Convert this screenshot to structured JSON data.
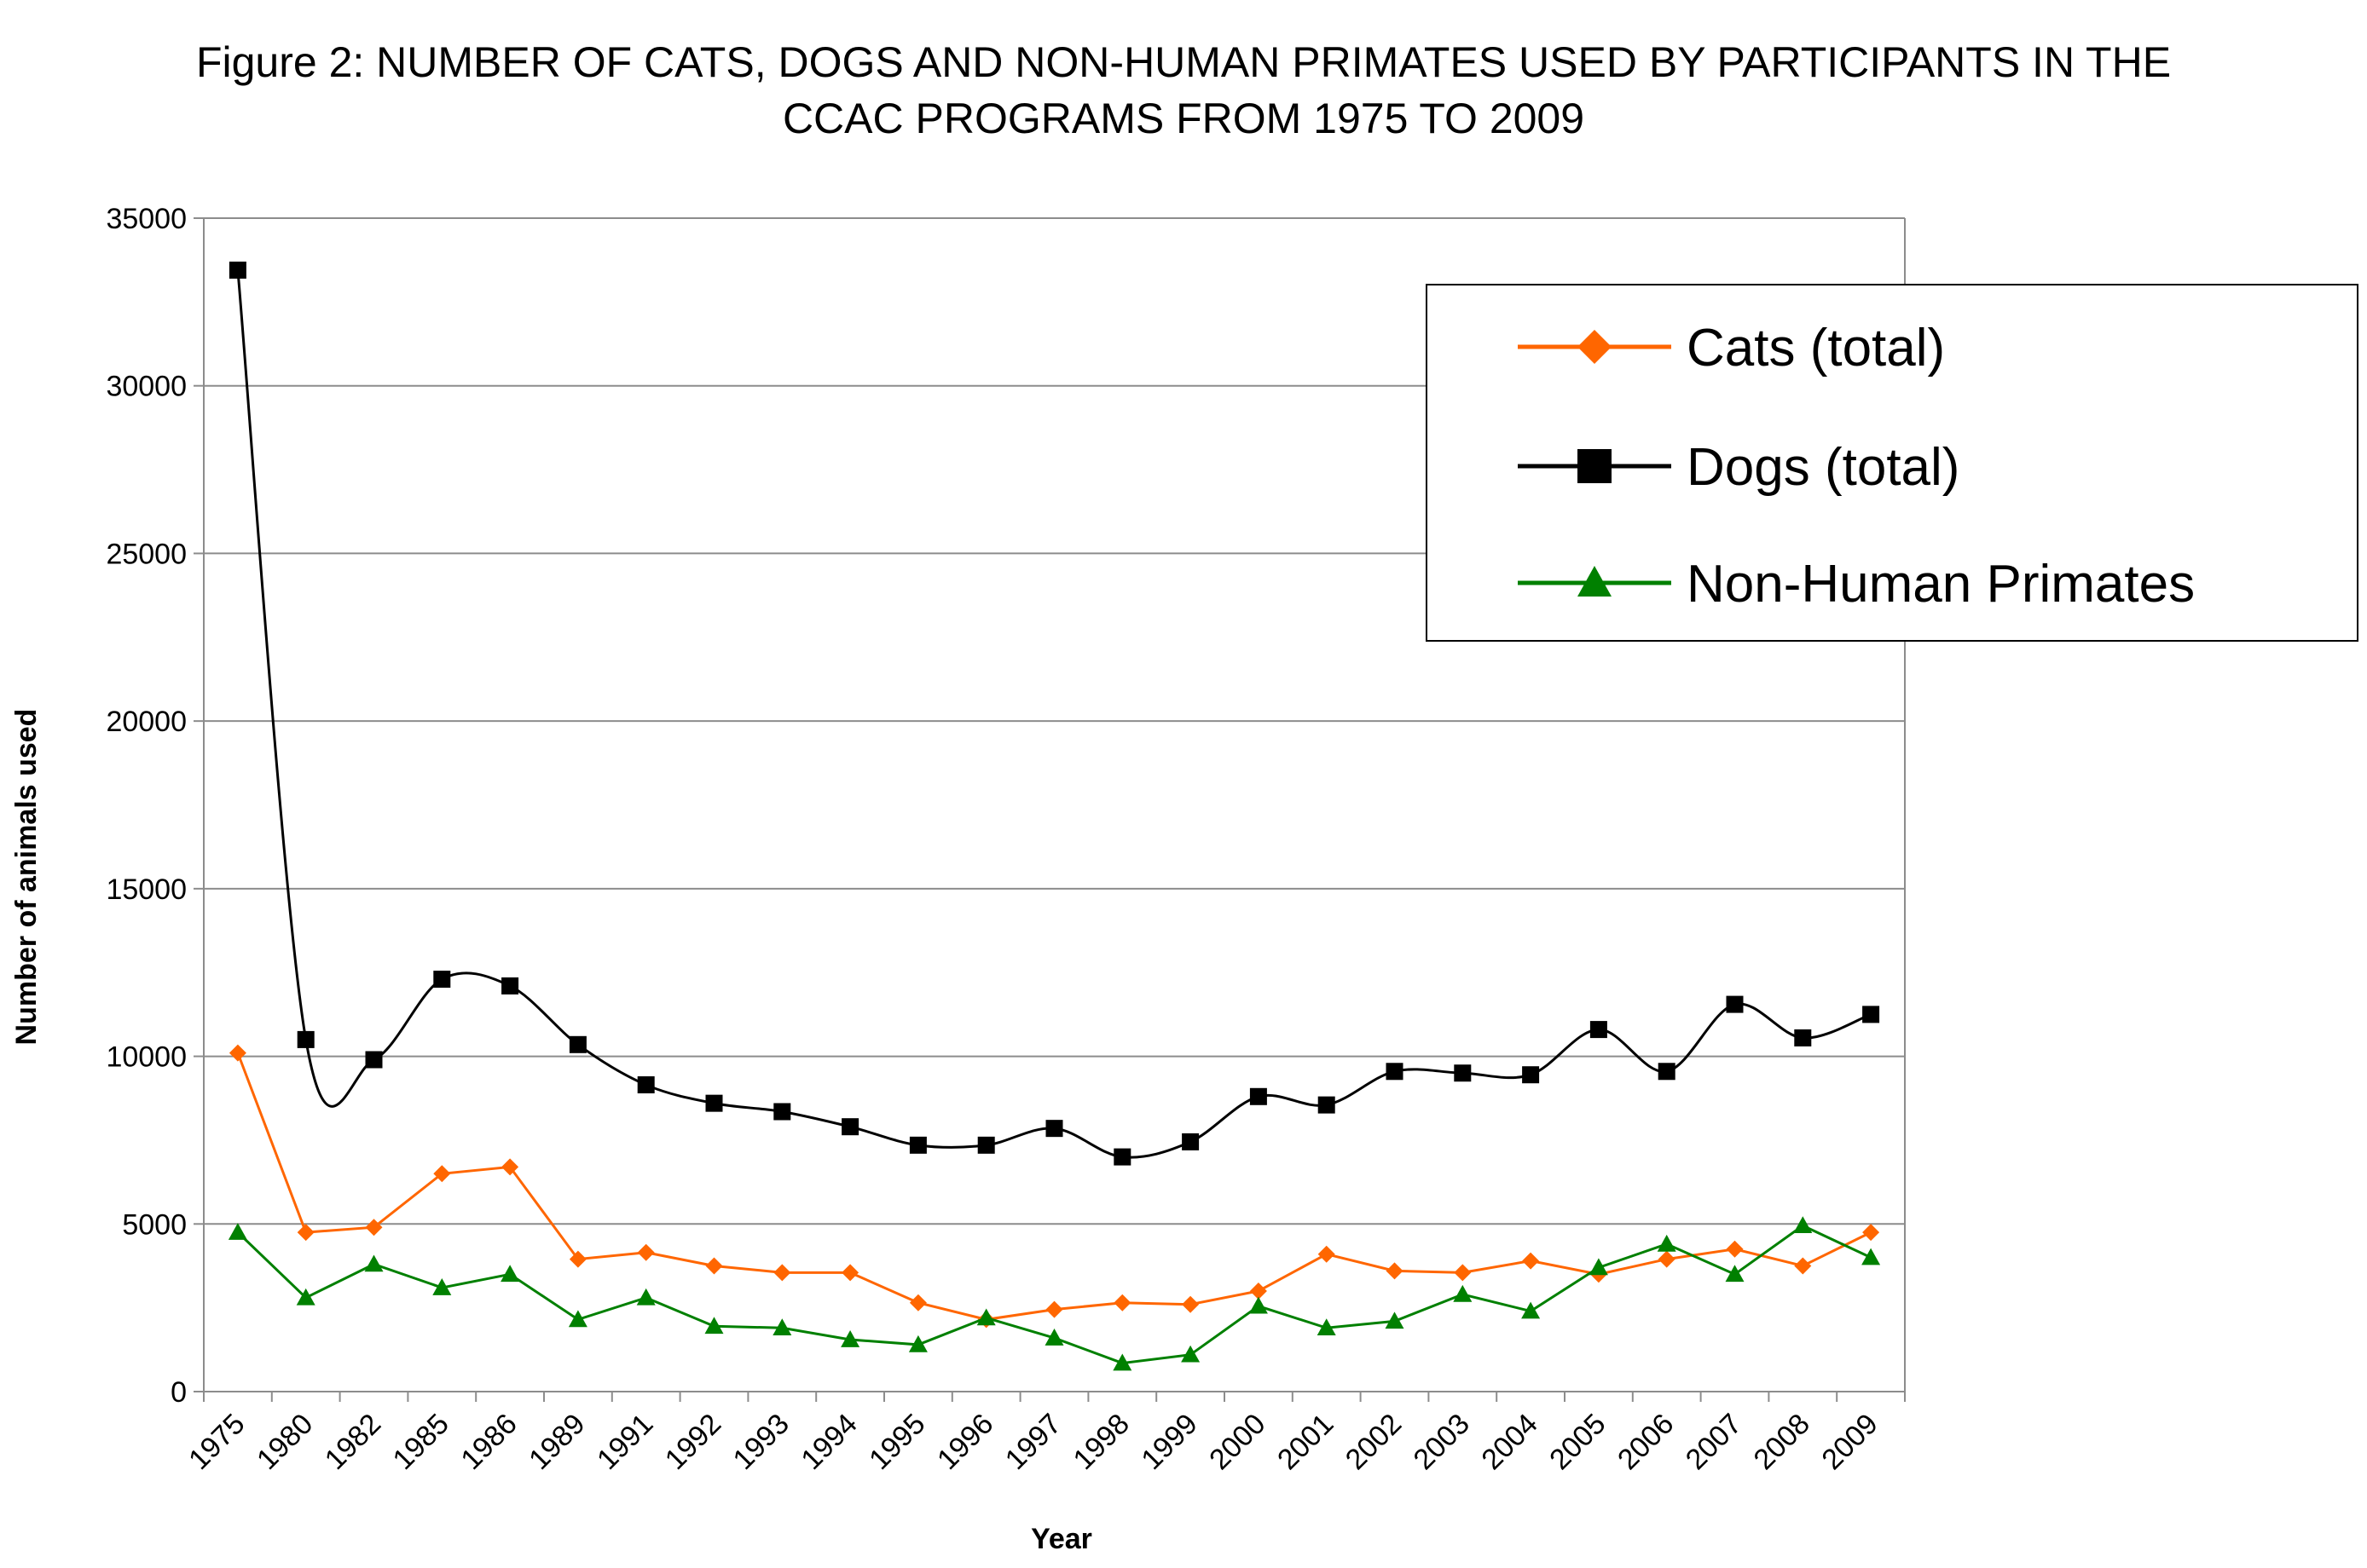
{
  "chart_data": {
    "type": "line",
    "title": "Figure 2: NUMBER OF CATS, DOGS AND NON-HUMAN PRIMATES USED BY PARTICIPANTS IN THE\nCCAC PROGRAMS FROM 1975 TO 2009",
    "xlabel": "Year",
    "ylabel": "Number of animals used",
    "ylim": [
      0,
      35000
    ],
    "yticks": [
      0,
      5000,
      10000,
      15000,
      20000,
      25000,
      30000,
      35000
    ],
    "grid": true,
    "legend_position": "top-right",
    "categories": [
      "1975",
      "1980",
      "1982",
      "1985",
      "1986",
      "1989",
      "1991",
      "1992",
      "1993",
      "1994",
      "1995",
      "1996",
      "1997",
      "1998",
      "1999",
      "2000",
      "2001",
      "2002",
      "2003",
      "2004",
      "2005",
      "2006",
      "2007",
      "2008",
      "2009"
    ],
    "series": [
      {
        "name": "Cats (total)",
        "color": "#ff6600",
        "marker": "diamond",
        "values": [
          10100,
          4750,
          4900,
          6500,
          6700,
          3950,
          4150,
          3750,
          3550,
          3550,
          2650,
          2150,
          2450,
          2650,
          2600,
          3000,
          4100,
          3600,
          3550,
          3900,
          3500,
          3950,
          4250,
          3750,
          4750
        ]
      },
      {
        "name": "Dogs (total)",
        "color": "#000000",
        "marker": "square",
        "values": [
          33450,
          10500,
          9900,
          12300,
          12100,
          10350,
          9150,
          8600,
          8350,
          7900,
          7350,
          7350,
          7850,
          7000,
          7450,
          8800,
          8550,
          9550,
          9500,
          9450,
          10800,
          9550,
          11550,
          10550,
          11250
        ]
      },
      {
        "name": "Non-Human Primates",
        "color": "#008000",
        "marker": "triangle",
        "values": [
          4750,
          2800,
          3800,
          3100,
          3500,
          2150,
          2800,
          1950,
          1900,
          1550,
          1400,
          2200,
          1600,
          850,
          1100,
          2550,
          1900,
          2100,
          2900,
          2400,
          3700,
          4400,
          3500,
          4950,
          4000
        ]
      }
    ]
  }
}
